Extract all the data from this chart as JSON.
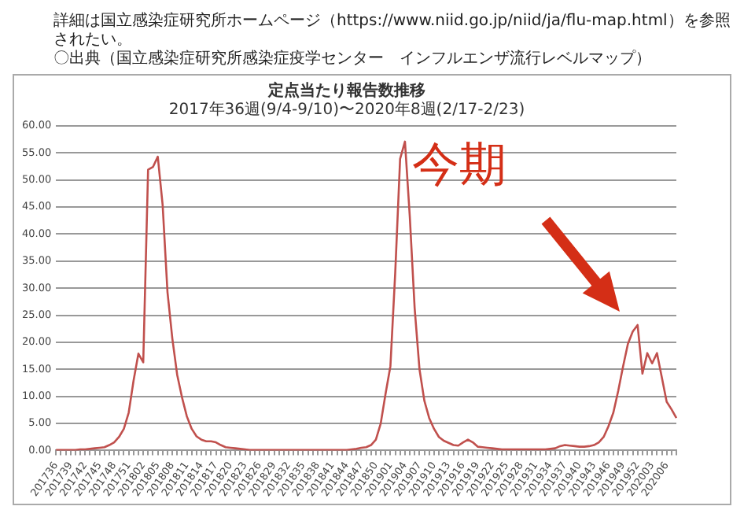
{
  "chart_data": {
    "type": "line",
    "title": "定点当たり報告数推移",
    "subtitle": "2017年36週(9/4-9/10)〜2020年8週(2/17-2/23)",
    "categories": [
      "201736",
      null,
      null,
      "201739",
      null,
      null,
      "201742",
      null,
      null,
      "201745",
      null,
      null,
      "201748",
      null,
      null,
      "201751",
      null,
      null,
      "201802",
      null,
      null,
      "201805",
      null,
      null,
      "201808",
      null,
      null,
      "201811",
      null,
      null,
      "201814",
      null,
      null,
      "201817",
      null,
      null,
      "201820",
      null,
      null,
      "201823",
      null,
      null,
      "201826",
      null,
      null,
      "201829",
      null,
      null,
      "201832",
      null,
      null,
      "201835",
      null,
      null,
      "201838",
      null,
      null,
      "201841",
      null,
      null,
      "201844",
      null,
      null,
      "201847",
      null,
      null,
      "201850",
      null,
      null,
      "201901",
      null,
      null,
      "201904",
      null,
      null,
      "201907",
      null,
      null,
      "201910",
      null,
      null,
      "201913",
      null,
      null,
      "201916",
      null,
      null,
      "201919",
      null,
      null,
      "201922",
      null,
      null,
      "201925",
      null,
      null,
      "201928",
      null,
      null,
      "201931",
      null,
      null,
      "201934",
      null,
      null,
      "201937",
      null,
      null,
      "201940",
      null,
      null,
      "201943",
      null,
      null,
      "201946",
      null,
      null,
      "201949",
      null,
      null,
      "201952",
      null,
      null,
      "202003",
      null,
      null,
      "202006",
      null,
      null
    ],
    "series": [
      {
        "color": "#c0504d",
        "values": [
          0.1,
          0.1,
          0.1,
          0.1,
          0.1,
          0.2,
          0.2,
          0.3,
          0.4,
          0.5,
          0.6,
          1.0,
          1.5,
          2.5,
          4.0,
          7.0,
          12.9,
          17.9,
          16.3,
          51.9,
          52.4,
          54.3,
          45.4,
          29.3,
          20.7,
          14.0,
          9.8,
          6.3,
          4.0,
          2.6,
          2.0,
          1.7,
          1.7,
          1.5,
          1.0,
          0.6,
          0.5,
          0.4,
          0.3,
          0.2,
          0.1,
          0.1,
          0.1,
          0.1,
          0.1,
          0.1,
          0.1,
          0.1,
          0.1,
          0.1,
          0.1,
          0.1,
          0.1,
          0.1,
          0.1,
          0.1,
          0.1,
          0.1,
          0.1,
          0.1,
          0.1,
          0.2,
          0.3,
          0.5,
          0.6,
          1.0,
          2.0,
          5.0,
          10.5,
          15.6,
          33.0,
          53.9,
          57.1,
          43.2,
          26.3,
          15.0,
          9.2,
          6.0,
          4.0,
          2.5,
          1.8,
          1.4,
          1.0,
          0.9,
          1.5,
          2.0,
          1.5,
          0.7,
          0.6,
          0.5,
          0.4,
          0.3,
          0.2,
          0.2,
          0.2,
          0.2,
          0.2,
          0.2,
          0.2,
          0.2,
          0.2,
          0.2,
          0.3,
          0.4,
          0.8,
          1.0,
          0.9,
          0.8,
          0.7,
          0.7,
          0.8,
          1.0,
          1.5,
          2.5,
          4.5,
          7.0,
          11.0,
          15.5,
          19.7,
          22.0,
          23.2,
          14.2,
          18.0,
          16.1,
          18.0,
          13.5,
          9.0,
          7.6,
          6.0
        ]
      }
    ],
    "ylim": [
      0,
      60
    ],
    "yticks": [
      {
        "value": 0,
        "label": "0.00"
      },
      {
        "value": 5,
        "label": "5.00"
      },
      {
        "value": 10,
        "label": "10.00"
      },
      {
        "value": 15,
        "label": "15.00"
      },
      {
        "value": 20,
        "label": "20.00"
      },
      {
        "value": 25,
        "label": "25.00"
      },
      {
        "value": 30,
        "label": "30.00"
      },
      {
        "value": 35,
        "label": "35.00"
      },
      {
        "value": 40,
        "label": "40.00"
      },
      {
        "value": 45,
        "label": "45.00"
      },
      {
        "value": 50,
        "label": "50.00"
      },
      {
        "value": 55,
        "label": "55.00"
      },
      {
        "value": 60,
        "label": "60.00"
      }
    ],
    "grid": "y",
    "legend": false,
    "marker": "none",
    "annotations": [
      "詳細は国立感染症研究所ホームページ（https://www.niid.go.jp/niid/ja/flu-map.html）を参照されたい。",
      "〇出典（国立感染症研究所感染症疫学センター　インフルエンザ流行レベルマップ）",
      "今期"
    ]
  }
}
